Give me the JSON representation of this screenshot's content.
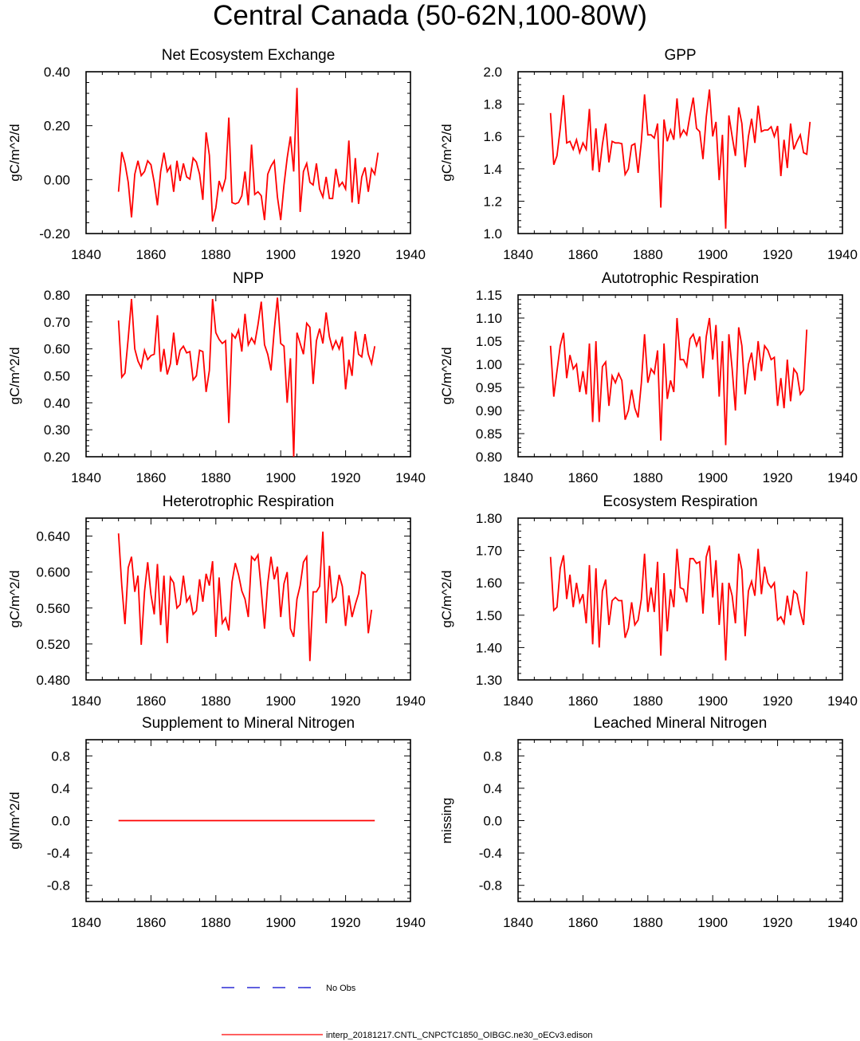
{
  "title": "Central Canada (50-62N,100-80W)",
  "legend": {
    "obs_label": "No Obs",
    "obs_color": "#0000cc",
    "model_label": "interp_20181217.CNTL_CNPCTC1850_OIBGC.ne30_oECv3.edison",
    "model_color": "#ff0000"
  },
  "chart_data": [
    {
      "type": "line",
      "title": "Net Ecosystem Exchange",
      "xlabel": "",
      "ylabel": "gC/m^2/d",
      "xlim": [
        1840,
        1940
      ],
      "ylim": [
        -0.2,
        0.4
      ],
      "xticks": [
        "1840",
        "1860",
        "1880",
        "1900",
        "1920",
        "1940"
      ],
      "yticks": [
        "-0.20",
        "0.00",
        "0.20",
        "0.40"
      ],
      "x_start": 1850,
      "series": [
        {
          "name": "interp_20181217.CNTL_CNPCTC1850_OIBGC.ne30_oECv3.edison",
          "values": [
            -0.045,
            0.102,
            0.06,
            -0.01,
            -0.14,
            0.02,
            0.07,
            0.015,
            0.03,
            0.07,
            0.055,
            -0.01,
            -0.095,
            0.03,
            0.1,
            0.03,
            0.05,
            -0.045,
            0.07,
            -0.005,
            0.06,
            0.01,
            0.002,
            0.08,
            0.065,
            0.02,
            -0.075,
            0.175,
            0.09,
            -0.155,
            -0.105,
            -0.005,
            -0.04,
            0.005,
            0.23,
            -0.085,
            -0.09,
            -0.085,
            -0.06,
            0.03,
            -0.095,
            0.13,
            -0.055,
            -0.045,
            -0.06,
            -0.15,
            0.02,
            0.05,
            0.07,
            -0.065,
            -0.15,
            -0.02,
            0.08,
            0.16,
            0.03,
            0.34,
            -0.12,
            0.03,
            0.06,
            -0.01,
            -0.02,
            0.06,
            -0.035,
            -0.065,
            0.01,
            -0.07,
            -0.07,
            0.04,
            -0.025,
            -0.01,
            -0.035,
            0.145,
            -0.085,
            0.08,
            -0.09,
            0.01,
            0.045,
            -0.045,
            0.04,
            0.02,
            0.1
          ]
        }
      ]
    },
    {
      "type": "line",
      "title": "GPP",
      "xlabel": "",
      "ylabel": "gC/m^2/d",
      "xlim": [
        1840,
        1940
      ],
      "ylim": [
        1.0,
        2.0
      ],
      "xticks": [
        "1840",
        "1860",
        "1880",
        "1900",
        "1920",
        "1940"
      ],
      "yticks": [
        "1.0",
        "1.2",
        "1.4",
        "1.6",
        "1.8",
        "2.0"
      ],
      "x_start": 1850,
      "series": [
        {
          "name": "interp_20181217.CNTL_CNPCTC1850_OIBGC.ne30_oECv3.edison",
          "values": [
            1.745,
            1.425,
            1.48,
            1.65,
            1.855,
            1.56,
            1.57,
            1.52,
            1.58,
            1.5,
            1.56,
            1.52,
            1.77,
            1.39,
            1.65,
            1.38,
            1.55,
            1.68,
            1.44,
            1.57,
            1.56,
            1.56,
            1.555,
            1.365,
            1.4,
            1.545,
            1.555,
            1.375,
            1.57,
            1.86,
            1.61,
            1.61,
            1.59,
            1.68,
            1.16,
            1.705,
            1.57,
            1.64,
            1.58,
            1.835,
            1.6,
            1.64,
            1.61,
            1.73,
            1.84,
            1.65,
            1.63,
            1.46,
            1.72,
            1.89,
            1.6,
            1.69,
            1.33,
            1.61,
            1.03,
            1.73,
            1.6,
            1.48,
            1.78,
            1.68,
            1.41,
            1.6,
            1.71,
            1.56,
            1.79,
            1.63,
            1.64,
            1.64,
            1.66,
            1.6,
            1.665,
            1.355,
            1.58,
            1.405,
            1.68,
            1.52,
            1.57,
            1.61,
            1.5,
            1.49,
            1.69
          ]
        }
      ]
    },
    {
      "type": "line",
      "title": "NPP",
      "xlabel": "",
      "ylabel": "gC/m^2/d",
      "xlim": [
        1840,
        1940
      ],
      "ylim": [
        0.2,
        0.8
      ],
      "xticks": [
        "1840",
        "1860",
        "1880",
        "1900",
        "1920",
        "1940"
      ],
      "yticks": [
        "0.20",
        "0.30",
        "0.40",
        "0.50",
        "0.60",
        "0.70",
        "0.80"
      ],
      "x_start": 1850,
      "series": [
        {
          "name": "interp_20181217.CNTL_CNPCTC1850_OIBGC.ne30_oECv3.edison",
          "values": [
            0.705,
            0.495,
            0.51,
            0.64,
            0.785,
            0.6,
            0.555,
            0.53,
            0.595,
            0.56,
            0.575,
            0.58,
            0.725,
            0.515,
            0.6,
            0.505,
            0.545,
            0.66,
            0.54,
            0.595,
            0.61,
            0.585,
            0.59,
            0.485,
            0.5,
            0.595,
            0.59,
            0.44,
            0.52,
            0.785,
            0.66,
            0.635,
            0.62,
            0.63,
            0.325,
            0.655,
            0.64,
            0.67,
            0.59,
            0.73,
            0.615,
            0.64,
            0.62,
            0.69,
            0.775,
            0.615,
            0.58,
            0.52,
            0.67,
            0.79,
            0.62,
            0.61,
            0.4,
            0.565,
            0.2,
            0.66,
            0.62,
            0.58,
            0.695,
            0.68,
            0.47,
            0.63,
            0.675,
            0.62,
            0.735,
            0.645,
            0.6,
            0.63,
            0.6,
            0.645,
            0.45,
            0.56,
            0.5,
            0.665,
            0.58,
            0.57,
            0.655,
            0.58,
            0.545,
            0.61
          ]
        }
      ]
    },
    {
      "type": "line",
      "title": "Autotrophic Respiration",
      "xlabel": "",
      "ylabel": "gC/m^2/d",
      "xlim": [
        1840,
        1940
      ],
      "ylim": [
        0.8,
        1.15
      ],
      "xticks": [
        "1840",
        "1860",
        "1880",
        "1900",
        "1920",
        "1940"
      ],
      "yticks": [
        "0.80",
        "0.85",
        "0.90",
        "0.95",
        "1.00",
        "1.05",
        "1.10",
        "1.15"
      ],
      "x_start": 1850,
      "series": [
        {
          "name": "interp_20181217.CNTL_CNPCTC1850_OIBGC.ne30_oECv3.edison",
          "values": [
            1.04,
            0.93,
            0.985,
            1.04,
            1.068,
            0.97,
            1.02,
            0.99,
            1.0,
            0.94,
            0.985,
            0.935,
            1.045,
            0.875,
            1.05,
            0.875,
            0.995,
            1.005,
            0.91,
            0.975,
            0.96,
            0.98,
            0.965,
            0.88,
            0.9,
            0.945,
            0.905,
            0.885,
            0.96,
            1.065,
            0.96,
            0.99,
            0.98,
            1.03,
            0.835,
            1.045,
            0.925,
            0.965,
            0.94,
            1.1,
            1.01,
            1.01,
            0.995,
            1.055,
            1.065,
            1.04,
            1.06,
            0.97,
            1.06,
            1.1,
            1.01,
            1.085,
            0.93,
            1.05,
            0.825,
            1.065,
            0.99,
            0.9,
            1.08,
            1.04,
            0.935,
            1.0,
            1.025,
            0.965,
            1.05,
            0.985,
            1.04,
            1.03,
            1.01,
            1.015,
            0.91,
            0.97,
            0.905,
            1.01,
            0.92,
            0.99,
            0.98,
            0.935,
            0.945,
            1.075
          ]
        }
      ]
    },
    {
      "type": "line",
      "title": "Heterotrophic Respiration",
      "xlabel": "",
      "ylabel": "gC/m^2/d",
      "xlim": [
        1840,
        1940
      ],
      "ylim": [
        0.48,
        0.66
      ],
      "xticks": [
        "1840",
        "1860",
        "1880",
        "1900",
        "1920",
        "1940"
      ],
      "yticks": [
        "0.480",
        "0.520",
        "0.560",
        "0.600",
        "0.640"
      ],
      "x_start": 1850,
      "series": [
        {
          "name": "interp_20181217.CNTL_CNPCTC1850_OIBGC.ne30_oECv3.edison",
          "values": [
            0.643,
            0.585,
            0.542,
            0.605,
            0.617,
            0.578,
            0.596,
            0.519,
            0.578,
            0.611,
            0.575,
            0.553,
            0.609,
            0.541,
            0.596,
            0.521,
            0.594,
            0.588,
            0.56,
            0.564,
            0.596,
            0.567,
            0.573,
            0.553,
            0.557,
            0.592,
            0.567,
            0.598,
            0.585,
            0.612,
            0.528,
            0.594,
            0.543,
            0.549,
            0.535,
            0.589,
            0.61,
            0.597,
            0.579,
            0.57,
            0.55,
            0.617,
            0.613,
            0.619,
            0.58,
            0.537,
            0.587,
            0.617,
            0.592,
            0.606,
            0.55,
            0.587,
            0.6,
            0.537,
            0.528,
            0.57,
            0.585,
            0.611,
            0.617,
            0.501,
            0.578,
            0.578,
            0.584,
            0.645,
            0.543,
            0.607,
            0.567,
            0.572,
            0.597,
            0.584,
            0.54,
            0.574,
            0.55,
            0.564,
            0.576,
            0.6,
            0.597,
            0.532,
            0.558
          ]
        }
      ]
    },
    {
      "type": "line",
      "title": "Ecosystem Respiration",
      "xlabel": "",
      "ylabel": "gC/m^2/d",
      "xlim": [
        1840,
        1940
      ],
      "ylim": [
        1.3,
        1.8
      ],
      "xticks": [
        "1840",
        "1860",
        "1880",
        "1900",
        "1920",
        "1940"
      ],
      "yticks": [
        "1.30",
        "1.40",
        "1.50",
        "1.60",
        "1.70",
        "1.80"
      ],
      "x_start": 1850,
      "series": [
        {
          "name": "interp_20181217.CNTL_CNPCTC1850_OIBGC.ne30_oECv3.edison",
          "values": [
            1.68,
            1.515,
            1.525,
            1.645,
            1.685,
            1.55,
            1.625,
            1.525,
            1.6,
            1.54,
            1.565,
            1.475,
            1.655,
            1.41,
            1.645,
            1.4,
            1.575,
            1.61,
            1.47,
            1.545,
            1.555,
            1.545,
            1.545,
            1.43,
            1.46,
            1.54,
            1.47,
            1.485,
            1.55,
            1.69,
            1.51,
            1.585,
            1.51,
            1.665,
            1.375,
            1.63,
            1.45,
            1.58,
            1.525,
            1.705,
            1.585,
            1.58,
            1.54,
            1.675,
            1.675,
            1.66,
            1.665,
            1.505,
            1.68,
            1.715,
            1.555,
            1.67,
            1.47,
            1.6,
            1.36,
            1.6,
            1.56,
            1.475,
            1.69,
            1.64,
            1.435,
            1.575,
            1.605,
            1.56,
            1.705,
            1.565,
            1.65,
            1.6,
            1.585,
            1.6,
            1.485,
            1.495,
            1.475,
            1.56,
            1.5,
            1.575,
            1.565,
            1.51,
            1.47,
            1.635
          ]
        }
      ]
    },
    {
      "type": "line",
      "title": "Supplement to Mineral Nitrogen",
      "xlabel": "",
      "ylabel": "gN/m^2/d",
      "xlim": [
        1840,
        1940
      ],
      "ylim": [
        -1.0,
        1.0
      ],
      "xticks": [
        "1840",
        "1860",
        "1880",
        "1900",
        "1920",
        "1940"
      ],
      "yticks": [
        "-0.8",
        "-0.4",
        "0.0",
        "0.4",
        "0.8"
      ],
      "ytick_values": [
        -0.8,
        -0.4,
        0.0,
        0.4,
        0.8
      ],
      "x_start": 1850,
      "series": [
        {
          "name": "interp_20181217.CNTL_CNPCTC1850_OIBGC.ne30_oECv3.edison",
          "values": [
            0.0,
            0.0
          ]
        }
      ],
      "series_x_end": 1929
    },
    {
      "type": "line",
      "title": "Leached Mineral Nitrogen",
      "xlabel": "",
      "ylabel": "missing",
      "xlim": [
        1840,
        1940
      ],
      "ylim": [
        -1.0,
        1.0
      ],
      "xticks": [
        "1840",
        "1860",
        "1880",
        "1900",
        "1920",
        "1940"
      ],
      "yticks": [
        "-0.8",
        "-0.4",
        "0.0",
        "0.4",
        "0.8"
      ],
      "ytick_values": [
        -0.8,
        -0.4,
        0.0,
        0.4,
        0.8
      ],
      "x_start": 1850,
      "series": []
    }
  ]
}
